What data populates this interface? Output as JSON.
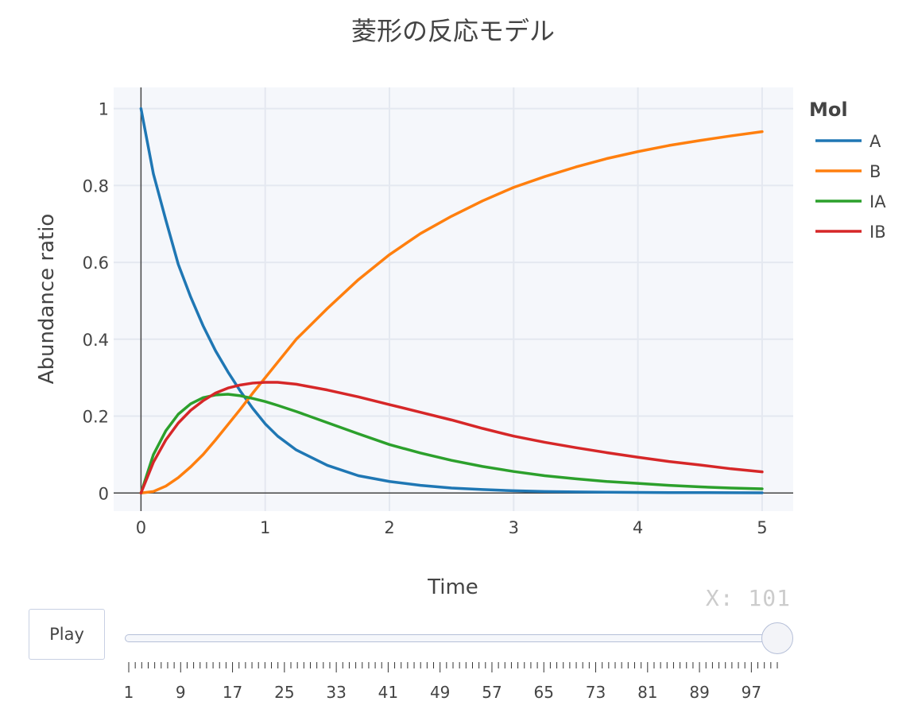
{
  "chart_data": {
    "type": "line",
    "title": "菱形の反応モデル",
    "xlabel": "Time",
    "ylabel": "Abundance ratio",
    "xlim": [
      -0.22,
      5.25
    ],
    "ylim": [
      -0.047,
      1.055
    ],
    "xticks": [
      0,
      1,
      2,
      3,
      4,
      5
    ],
    "xtick_labels": [
      "0",
      "1",
      "2",
      "3",
      "4",
      "5"
    ],
    "yticks": [
      0,
      0.2,
      0.4,
      0.6,
      0.8,
      1
    ],
    "ytick_labels": [
      "0",
      "0.2",
      "0.4",
      "0.6",
      "0.8",
      "1"
    ],
    "grid": true,
    "legend_title": "Mol",
    "legend_position": "right",
    "x": [
      0,
      0.1,
      0.2,
      0.3,
      0.4,
      0.5,
      0.6,
      0.7,
      0.8,
      0.9,
      1.0,
      1.1,
      1.25,
      1.5,
      1.75,
      2.0,
      2.25,
      2.5,
      2.75,
      3.0,
      3.25,
      3.5,
      3.75,
      4.0,
      4.25,
      4.5,
      4.75,
      5.0
    ],
    "series": [
      {
        "name": "A",
        "color": "#1f77b4",
        "values": [
          1.0,
          0.83,
          0.71,
          0.595,
          0.51,
          0.435,
          0.37,
          0.315,
          0.265,
          0.22,
          0.18,
          0.148,
          0.112,
          0.072,
          0.045,
          0.03,
          0.02,
          0.013,
          0.009,
          0.006,
          0.004,
          0.003,
          0.002,
          0.0015,
          0.001,
          0.001,
          0.0008,
          0.0006
        ]
      },
      {
        "name": "B",
        "color": "#ff7f0e",
        "values": [
          0.0,
          0.004,
          0.018,
          0.04,
          0.068,
          0.1,
          0.138,
          0.178,
          0.218,
          0.26,
          0.3,
          0.34,
          0.4,
          0.48,
          0.555,
          0.62,
          0.675,
          0.72,
          0.76,
          0.795,
          0.823,
          0.848,
          0.87,
          0.888,
          0.904,
          0.917,
          0.929,
          0.94
        ]
      },
      {
        "name": "IA",
        "color": "#2ca02c",
        "values": [
          0.0,
          0.1,
          0.162,
          0.205,
          0.232,
          0.248,
          0.255,
          0.257,
          0.253,
          0.246,
          0.238,
          0.228,
          0.212,
          0.183,
          0.154,
          0.126,
          0.104,
          0.085,
          0.069,
          0.056,
          0.045,
          0.037,
          0.03,
          0.025,
          0.02,
          0.016,
          0.013,
          0.011
        ]
      },
      {
        "name": "IB",
        "color": "#d62728",
        "values": [
          0.0,
          0.08,
          0.138,
          0.182,
          0.215,
          0.24,
          0.26,
          0.273,
          0.281,
          0.286,
          0.288,
          0.288,
          0.283,
          0.268,
          0.25,
          0.23,
          0.21,
          0.19,
          0.168,
          0.148,
          0.132,
          0.118,
          0.105,
          0.093,
          0.082,
          0.073,
          0.063,
          0.055
        ]
      }
    ]
  },
  "animation": {
    "play_label": "Play",
    "readout": "X: 101",
    "slider_min": 1,
    "slider_max": 101,
    "slider_value": 101,
    "slider_step_count": 101,
    "tick_labels": [
      "1",
      "9",
      "17",
      "25",
      "33",
      "41",
      "49",
      "57",
      "65",
      "73",
      "81",
      "89",
      "97"
    ]
  }
}
